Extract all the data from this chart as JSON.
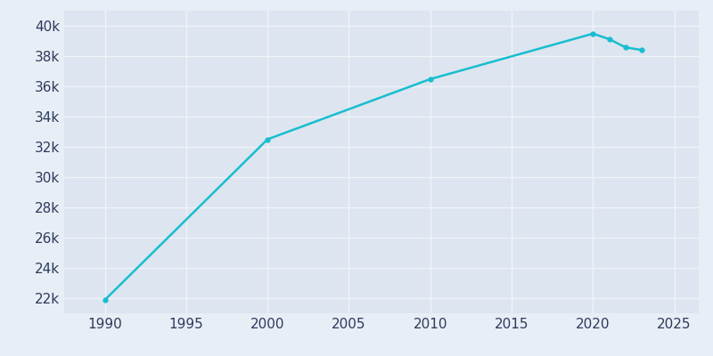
{
  "years": [
    1990,
    2000,
    2010,
    2020,
    2021,
    2022,
    2023
  ],
  "population": [
    21884,
    32500,
    36478,
    39483,
    39118,
    38575,
    38400
  ],
  "line_color": "#17becf",
  "marker_style": "o",
  "marker_size": 3.5,
  "line_width": 1.8,
  "fig_bg_color": "#e8eef5",
  "plot_bg_color": "#dde5f0",
  "grid_color": "#f0f4f9",
  "tick_color": "#2d3a5c",
  "tick_fontsize": 11,
  "xlim": [
    1987.5,
    2026.5
  ],
  "ylim": [
    21000,
    41000
  ],
  "xticks": [
    1990,
    1995,
    2000,
    2005,
    2010,
    2015,
    2020,
    2025
  ],
  "ytick_values": [
    22000,
    24000,
    26000,
    28000,
    30000,
    32000,
    34000,
    36000,
    38000,
    40000
  ]
}
